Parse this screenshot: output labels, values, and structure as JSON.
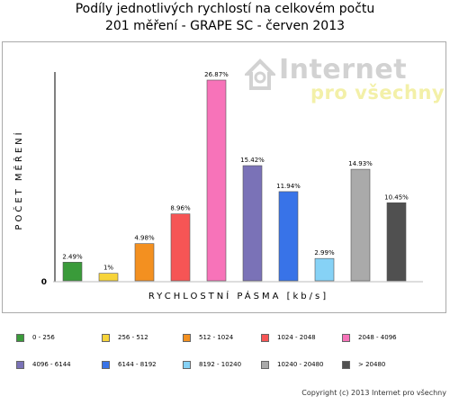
{
  "chart_data": {
    "type": "bar",
    "title": "Podíly jednotlivých rychlostí na celkovém počtu",
    "subtitle": "201 měření - GRAPE SC - červen 2013",
    "xlabel": "RYCHLOSTNÍ PÁSMA [kb/s]",
    "ylabel": "POČET MĚŘENÍ",
    "ytick_label": "0",
    "grid": false,
    "legend_position": "bottom",
    "categories": [
      "0 - 256",
      "256 - 512",
      "512 - 1024",
      "1024 - 2048",
      "2048 - 4096",
      "4096 - 6144",
      "6144 - 8192",
      "8192 - 10240",
      "10240 - 20480",
      "> 20480"
    ],
    "values": [
      2.49,
      1,
      4.98,
      8.96,
      26.87,
      15.42,
      11.94,
      2.99,
      14.93,
      10.45
    ],
    "value_labels": [
      "2.49%",
      "1%",
      "4.98%",
      "8.96%",
      "26.87%",
      "15.42%",
      "11.94%",
      "2.99%",
      "14.93%",
      "10.45%"
    ],
    "colors": [
      "#3a9b3a",
      "#f7d43a",
      "#f39020",
      "#f65555",
      "#f773b9",
      "#7a72b7",
      "#3873e8",
      "#86d2f6",
      "#aaaaaa",
      "#505050"
    ]
  },
  "watermark": {
    "line1": "Internet",
    "line2": "pro všechny"
  },
  "copyright": "Copyright (c) 2013 Internet pro všechny"
}
